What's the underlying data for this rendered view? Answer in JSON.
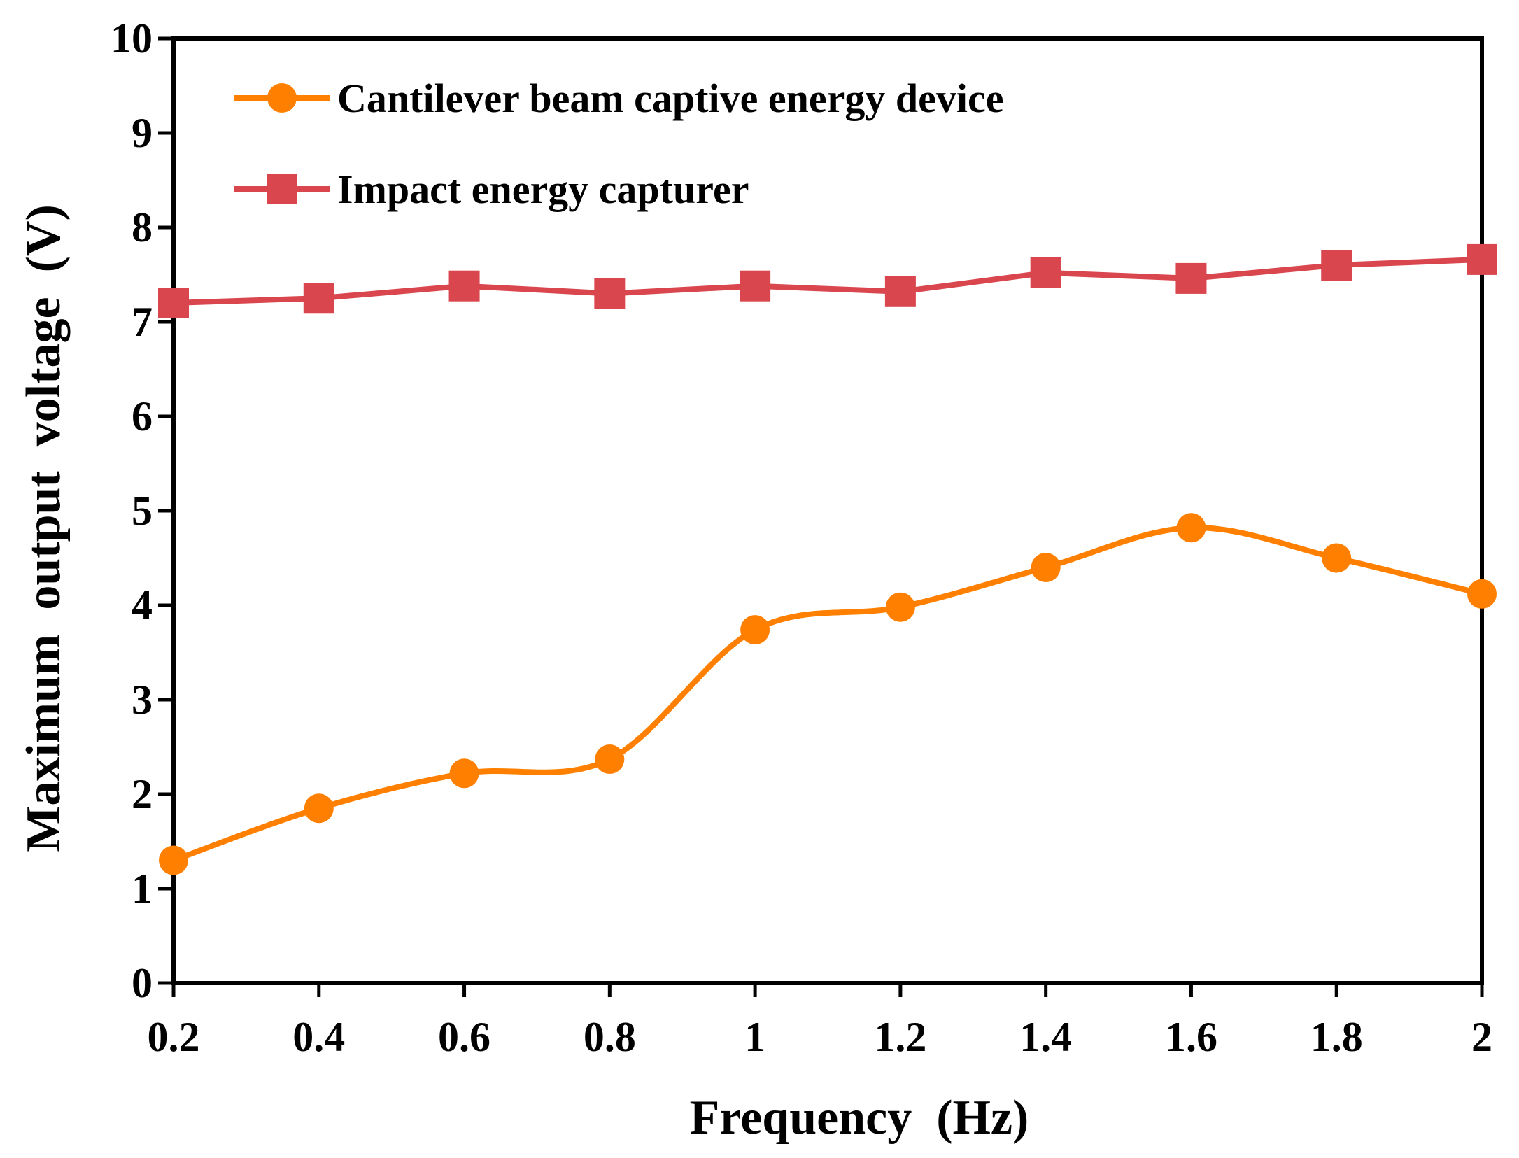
{
  "chart_data": {
    "type": "line",
    "title": "",
    "xlabel": "Frequency  (Hz)",
    "ylabel": "Maximum  output  voltage  (V)",
    "x": [
      0.2,
      0.4,
      0.6,
      0.8,
      1.0,
      1.2,
      1.4,
      1.6,
      1.8,
      2.0
    ],
    "x_tick_labels": [
      "0.2",
      "0.4",
      "0.6",
      "0.8",
      "1",
      "1.2",
      "1.4",
      "1.6",
      "1.8",
      "2"
    ],
    "xlim": [
      0.2,
      2.0
    ],
    "ylim": [
      0,
      10
    ],
    "y_ticks": [
      0,
      1,
      2,
      3,
      4,
      5,
      6,
      7,
      8,
      9,
      10
    ],
    "y_tick_labels": [
      "0",
      "1",
      "2",
      "3",
      "4",
      "5",
      "6",
      "7",
      "8",
      "9",
      "10"
    ],
    "grid": false,
    "legend_position": "top-left",
    "series": [
      {
        "name": "Cantilever beam captive energy device",
        "color": "#ff8000",
        "marker": "circle",
        "smooth": true,
        "values": [
          1.3,
          1.85,
          2.22,
          2.37,
          3.74,
          3.98,
          4.4,
          4.82,
          4.5,
          4.12
        ]
      },
      {
        "name": "Impact energy capturer",
        "color": "#d9464e",
        "marker": "square",
        "smooth": false,
        "values": [
          7.2,
          7.25,
          7.38,
          7.3,
          7.38,
          7.32,
          7.52,
          7.46,
          7.6,
          7.66
        ]
      }
    ]
  }
}
